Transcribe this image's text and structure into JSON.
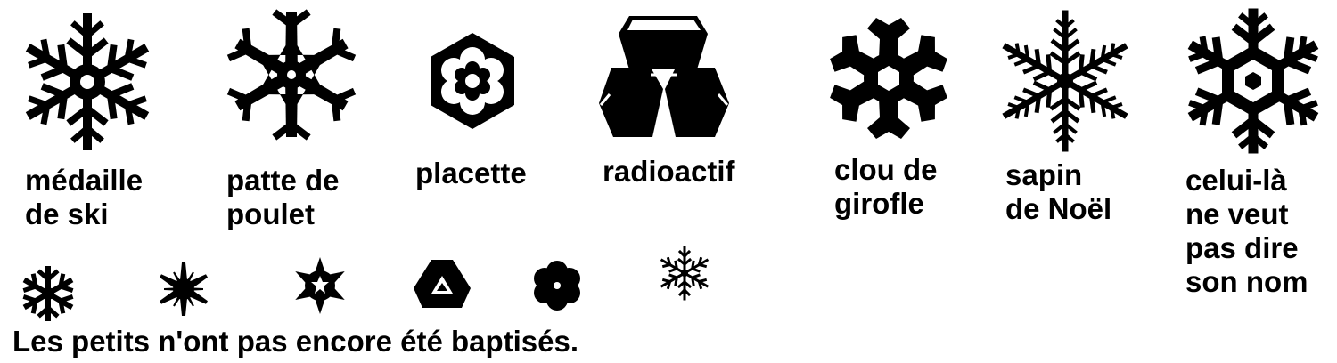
{
  "flakes": [
    {
      "icon": "ski-medal-snowflake-icon",
      "label": "médaille\nde ski"
    },
    {
      "icon": "chicken-foot-snowflake-icon",
      "label": "patte de\npoulet"
    },
    {
      "icon": "placette-snowflake-icon",
      "label": "placette"
    },
    {
      "icon": "radioactive-snowflake-icon",
      "label": "radioactif"
    },
    {
      "icon": "clove-snowflake-icon",
      "label": "clou de\ngirofle"
    },
    {
      "icon": "christmas-tree-snowflake-icon",
      "label": "sapin\nde Noël"
    },
    {
      "icon": "nameless-snowflake-icon",
      "label": "celui-là\nne veut\npas dire\nson nom"
    }
  ],
  "small_flakes": [
    "small-snowflake-1-icon",
    "small-snowflake-2-icon",
    "small-snowflake-3-icon",
    "small-snowflake-4-icon",
    "small-snowflake-5-icon",
    "small-snowflake-6-icon"
  ],
  "caption": "Les petits n'ont pas encore été baptisés.",
  "colors": {
    "ink": "#000000",
    "background": "#ffffff"
  }
}
